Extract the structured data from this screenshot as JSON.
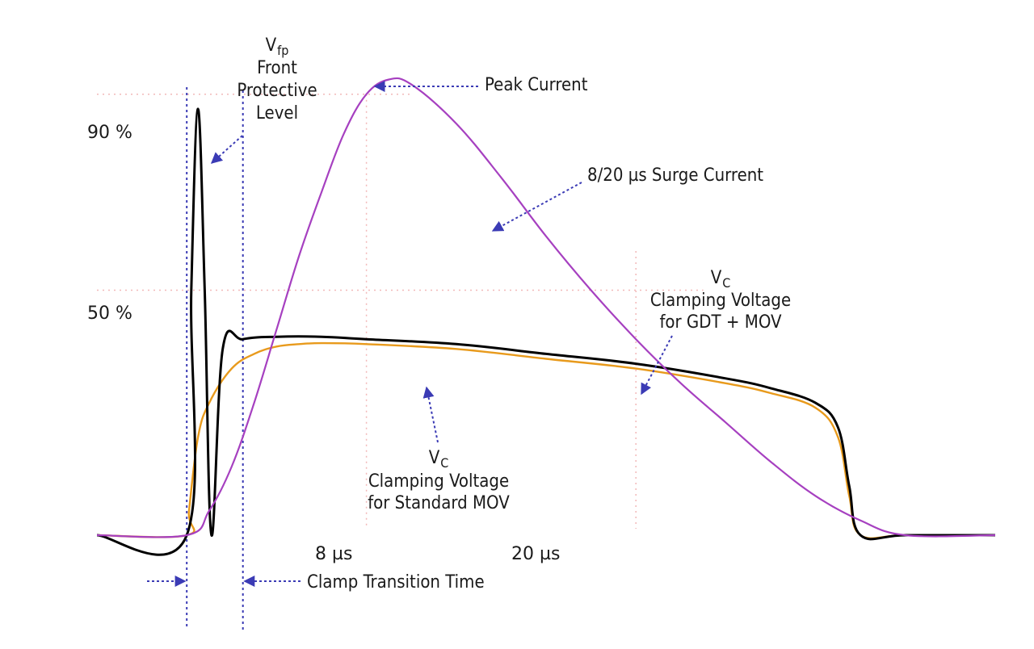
{
  "chart_data": {
    "type": "line",
    "x_ticks": [
      "8 µs",
      "20 µs"
    ],
    "y_ticks": [
      "90 %",
      "50 %"
    ],
    "series": [
      {
        "name": "8/20 µs Surge Current",
        "color": "#a640c0",
        "x": [
          0,
          1,
          2,
          3,
          4,
          5,
          6,
          7,
          8,
          9,
          10,
          12,
          14,
          16,
          18,
          20,
          22,
          24,
          26,
          28,
          30,
          32
        ],
        "y": [
          0,
          5,
          14,
          27,
          42,
          57,
          70,
          82,
          90,
          93,
          92,
          84,
          73,
          61,
          50,
          40,
          31,
          23,
          15,
          8,
          3,
          0
        ]
      },
      {
        "name": "Clamping Voltage for GDT + MOV",
        "color": "#000000",
        "x": [
          0,
          0.2,
          0.5,
          0.8,
          1.1,
          1.6,
          2.5,
          4,
          6,
          8,
          12,
          16,
          20,
          24,
          26,
          28,
          29,
          29.5,
          30,
          32
        ],
        "y": [
          0,
          50,
          87,
          50,
          0,
          38,
          40,
          40.5,
          40.5,
          40,
          39,
          37,
          35,
          32,
          30,
          27,
          22,
          10,
          0,
          0
        ]
      },
      {
        "name": "Clamping Voltage for Standard MOV",
        "color": "#e89a1c",
        "x": [
          0,
          0.1,
          0.5,
          1,
          2,
          3,
          4,
          5,
          6,
          8,
          12,
          16,
          20,
          24,
          26,
          28,
          29,
          29.5,
          30,
          32
        ],
        "y": [
          0,
          5,
          20,
          27,
          34,
          37,
          38.5,
          39,
          39.2,
          39,
          38,
          36,
          34,
          31,
          29,
          26,
          20,
          8,
          0,
          0
        ]
      }
    ],
    "xlim": [
      -4,
      36
    ],
    "ylim": [
      0,
      100
    ],
    "annotations": {
      "vfp_symbol": "V",
      "vfp_sub": "fp",
      "vfp_lines": [
        "Front",
        "Protective",
        "Level"
      ],
      "peak": "Peak Current",
      "surge": "8/20 µs Surge Current",
      "vc_symbol": "V",
      "vc_sub": "C",
      "vc_gdt_lines": [
        "Clamping Voltage",
        "for GDT + MOV"
      ],
      "vc_mov_lines": [
        "Clamping Voltage",
        "for Standard MOV"
      ],
      "clamp": "Clamp Transition Time"
    },
    "colors": {
      "guide": "#3b3bb5",
      "grid": "#f2b8b8"
    }
  }
}
